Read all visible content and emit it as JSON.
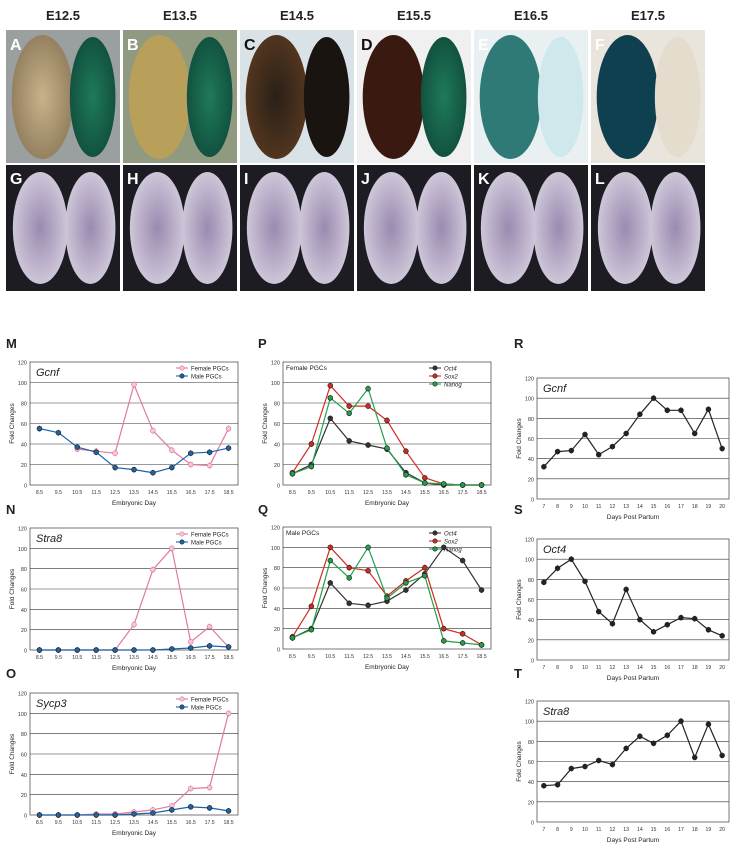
{
  "stages": [
    "E12.5",
    "E13.5",
    "E14.5",
    "E15.5",
    "E16.5",
    "E17.5"
  ],
  "panel_letters_top": [
    "A",
    "B",
    "C",
    "D",
    "E",
    "F"
  ],
  "panel_letters_bottom": [
    "G",
    "H",
    "I",
    "J",
    "K",
    "L"
  ],
  "chart_data": [
    {
      "panel": "M",
      "type": "line",
      "title": "Gcnf",
      "ylabel": "Fold Changes",
      "xlabel": "Embryonic Day",
      "categories": [
        "8.5",
        "9.5",
        "10.5",
        "11.5",
        "12.5",
        "13.5",
        "14.5",
        "15.5",
        "16.5",
        "17.5",
        "18.5"
      ],
      "ylim": [
        0,
        120
      ],
      "yticks": [
        0,
        20,
        40,
        60,
        80,
        100,
        120
      ],
      "grid": true,
      "legend": "top-right",
      "series": [
        {
          "name": "Female PGCs",
          "color": "#e07aa0",
          "marker": "open",
          "values": [
            null,
            null,
            35,
            33,
            31,
            98,
            53,
            34,
            20,
            19,
            55
          ]
        },
        {
          "name": "Male PGCs",
          "color": "#1a64a8",
          "marker": "filled",
          "values": [
            55,
            51,
            37,
            32,
            17,
            15,
            12,
            17,
            31,
            32,
            36
          ]
        }
      ]
    },
    {
      "panel": "N",
      "type": "line",
      "title": "Stra8",
      "ylabel": "Fold Changes",
      "xlabel": "Embryonic Day",
      "categories": [
        "8.5",
        "9.5",
        "10.5",
        "11.5",
        "12.5",
        "13.5",
        "14.5",
        "15.5",
        "16.5",
        "17.5",
        "18.5"
      ],
      "ylim": [
        0,
        120
      ],
      "yticks": [
        0,
        20,
        40,
        60,
        80,
        100,
        120
      ],
      "grid": true,
      "legend": "top-right",
      "series": [
        {
          "name": "Female PGCs",
          "color": "#e07aa0",
          "marker": "open",
          "values": [
            0,
            0,
            0,
            0,
            0,
            25,
            79,
            100,
            8,
            23,
            3
          ]
        },
        {
          "name": "Male PGCs",
          "color": "#1a64a8",
          "marker": "filled",
          "values": [
            0,
            0,
            0,
            0,
            0,
            0,
            0,
            1,
            2,
            4,
            3
          ]
        }
      ]
    },
    {
      "panel": "O",
      "type": "line",
      "title": "Sycp3",
      "ylabel": "Fold Changes",
      "xlabel": "Embryonic Day",
      "categories": [
        "8.5",
        "9.5",
        "10.5",
        "11.5",
        "12.5",
        "13.5",
        "14.5",
        "15.5",
        "16.5",
        "17.5",
        "18.5"
      ],
      "ylim": [
        0,
        120
      ],
      "yticks": [
        0,
        20,
        40,
        60,
        80,
        100,
        120
      ],
      "grid": true,
      "legend": "top-right",
      "series": [
        {
          "name": "Female PGCs",
          "color": "#e07aa0",
          "marker": "open",
          "values": [
            0,
            0,
            0,
            1,
            1,
            3,
            5,
            9,
            26,
            27,
            100
          ]
        },
        {
          "name": "Male PGCs",
          "color": "#1a64a8",
          "marker": "filled",
          "values": [
            0,
            0,
            0,
            0,
            0,
            1,
            2,
            5,
            8,
            7,
            4
          ]
        }
      ]
    },
    {
      "panel": "P",
      "type": "line",
      "title": "",
      "inset_label": "Female PGCs",
      "ylabel": "Fold Changes",
      "xlabel": "Embryonic Day",
      "categories": [
        "8.5",
        "9.5",
        "10.5",
        "11.5",
        "12.5",
        "13.5",
        "14.5",
        "15.5",
        "16.5",
        "17.5",
        "18.5"
      ],
      "ylim": [
        0,
        120
      ],
      "yticks": [
        0,
        20,
        40,
        60,
        80,
        100,
        120
      ],
      "grid": true,
      "legend": "top-right",
      "series": [
        {
          "name": "Oct4",
          "color": "#333333",
          "marker": "filled",
          "values": [
            11,
            20,
            65,
            43,
            39,
            35,
            12,
            2,
            0,
            0,
            0
          ]
        },
        {
          "name": "Sox2",
          "color": "#d42a1e",
          "marker": "filled",
          "values": [
            12,
            40,
            97,
            77,
            77,
            63,
            33,
            7,
            1,
            0,
            0
          ]
        },
        {
          "name": "Nanog",
          "color": "#22a04a",
          "marker": "filled",
          "values": [
            11,
            18,
            85,
            70,
            94,
            36,
            10,
            2,
            1,
            0,
            0
          ]
        }
      ]
    },
    {
      "panel": "Q",
      "type": "line",
      "title": "",
      "inset_label": "Male PGCs",
      "ylabel": "Fold Changes",
      "xlabel": "Embryonic Day",
      "categories": [
        "8.5",
        "9.5",
        "10.5",
        "11.5",
        "12.5",
        "13.5",
        "14.5",
        "15.5",
        "16.5",
        "17.5",
        "18.5"
      ],
      "ylim": [
        0,
        120
      ],
      "yticks": [
        0,
        20,
        40,
        60,
        80,
        100,
        120
      ],
      "grid": true,
      "legend": "top-right",
      "series": [
        {
          "name": "Oct4",
          "color": "#333333",
          "marker": "filled",
          "values": [
            11,
            20,
            65,
            45,
            43,
            47,
            58,
            74,
            100,
            87,
            58
          ]
        },
        {
          "name": "Sox2",
          "color": "#d42a1e",
          "marker": "filled",
          "values": [
            12,
            42,
            100,
            80,
            77,
            52,
            67,
            80,
            20,
            15,
            4
          ]
        },
        {
          "name": "Nanog",
          "color": "#22a04a",
          "marker": "filled",
          "values": [
            11,
            19,
            87,
            70,
            100,
            50,
            65,
            72,
            8,
            6,
            4
          ]
        }
      ]
    },
    {
      "panel": "R",
      "type": "line",
      "title": "Gcnf",
      "ylabel": "Fold Changes",
      "xlabel": "Days Post Partum",
      "categories": [
        "7",
        "8",
        "9",
        "10",
        "11",
        "12",
        "13",
        "14",
        "15",
        "16",
        "17",
        "18",
        "19",
        "20"
      ],
      "ylim": [
        0,
        120
      ],
      "yticks": [
        0,
        20,
        40,
        60,
        80,
        100,
        120
      ],
      "grid": true,
      "series": [
        {
          "name": "",
          "color": "#222222",
          "marker": "filled",
          "values": [
            32,
            47,
            48,
            64,
            44,
            52,
            65,
            84,
            100,
            88,
            88,
            65,
            89,
            50
          ]
        }
      ]
    },
    {
      "panel": "S",
      "type": "line",
      "title": "Oct4",
      "ylabel": "Fold Changes",
      "xlabel": "Days Post Partum",
      "categories": [
        "7",
        "8",
        "9",
        "10",
        "11",
        "12",
        "13",
        "14",
        "15",
        "16",
        "17",
        "18",
        "19",
        "20"
      ],
      "ylim": [
        0,
        120
      ],
      "yticks": [
        0,
        20,
        40,
        60,
        80,
        100,
        120
      ],
      "grid": true,
      "series": [
        {
          "name": "",
          "color": "#222222",
          "marker": "filled",
          "values": [
            77,
            91,
            100,
            78,
            48,
            36,
            70,
            40,
            28,
            35,
            42,
            41,
            30,
            24
          ]
        }
      ]
    },
    {
      "panel": "T",
      "type": "line",
      "title": "Stra8",
      "ylabel": "Fold Changes",
      "xlabel": "Days Post Partum",
      "categories": [
        "7",
        "8",
        "9",
        "10",
        "11",
        "12",
        "13",
        "14",
        "15",
        "16",
        "17",
        "18",
        "19",
        "20"
      ],
      "ylim": [
        0,
        120
      ],
      "yticks": [
        0,
        20,
        40,
        60,
        80,
        100,
        120
      ],
      "grid": true,
      "series": [
        {
          "name": "",
          "color": "#222222",
          "marker": "filled",
          "values": [
            36,
            37,
            53,
            55,
            61,
            57,
            73,
            85,
            78,
            86,
            100,
            64,
            97,
            66
          ]
        }
      ]
    }
  ]
}
